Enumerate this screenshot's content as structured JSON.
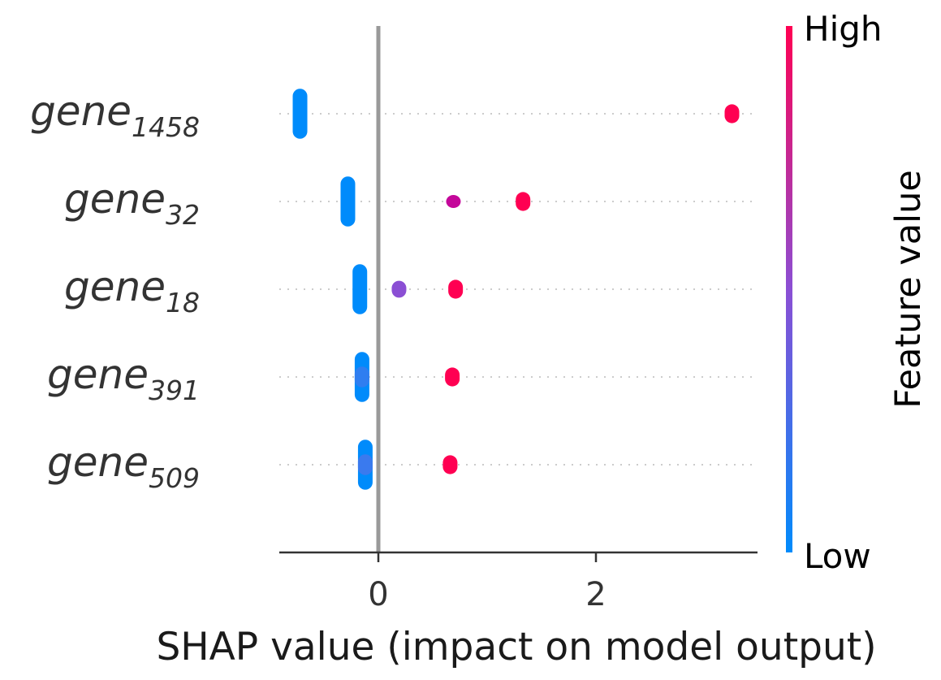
{
  "chart_data": {
    "type": "scatter",
    "subtype": "shap-beeswarm",
    "xlabel": "SHAP value (impact on model output)",
    "x_ticks": [
      0,
      2
    ],
    "xlim": [
      -0.9,
      3.45
    ],
    "zero_line": true,
    "colorbar": {
      "title": "Feature value",
      "high_label": "High",
      "low_label": "Low",
      "low_color": "#008bfb",
      "mid_color": "#8b4fd4",
      "high_color": "#ff0052"
    },
    "features": [
      {
        "base": "gene",
        "sub": "1458",
        "points": [
          {
            "x_min": -0.72,
            "x_max": -0.72,
            "spread": 0.38,
            "color": "#008bfb"
          },
          {
            "x_min": 3.25,
            "x_max": 3.25,
            "spread": 0.06,
            "color": "#ff0052"
          }
        ]
      },
      {
        "base": "gene",
        "sub": "32",
        "points": [
          {
            "x_min": -0.28,
            "x_max": -0.28,
            "spread": 0.38,
            "color": "#008bfb"
          },
          {
            "x_min": 0.69,
            "x_max": 0.69,
            "spread": 0.0,
            "color": "#c4079a"
          },
          {
            "x_min": 1.33,
            "x_max": 1.33,
            "spread": 0.06,
            "color": "#ff0052"
          }
        ]
      },
      {
        "base": "gene",
        "sub": "18",
        "points": [
          {
            "x_min": -0.17,
            "x_max": -0.17,
            "spread": 0.38,
            "color": "#008bfb"
          },
          {
            "x_min": 0.19,
            "x_max": 0.19,
            "spread": 0.04,
            "color": "#8b4fd4"
          },
          {
            "x_min": 0.71,
            "x_max": 0.71,
            "spread": 0.06,
            "color": "#ff0052"
          }
        ]
      },
      {
        "base": "gene",
        "sub": "391",
        "points": [
          {
            "x_min": -0.15,
            "x_max": -0.15,
            "spread": 0.38,
            "color": "#008bfb"
          },
          {
            "x_min": -0.15,
            "x_max": -0.15,
            "spread": 0.08,
            "color": "#2f7ef0"
          },
          {
            "x_min": 0.68,
            "x_max": 0.68,
            "spread": 0.06,
            "color": "#ff0052"
          }
        ]
      },
      {
        "base": "gene",
        "sub": "509",
        "points": [
          {
            "x_min": -0.12,
            "x_max": -0.12,
            "spread": 0.38,
            "color": "#008bfb"
          },
          {
            "x_min": -0.12,
            "x_max": -0.12,
            "spread": 0.08,
            "color": "#3a7aee"
          },
          {
            "x_min": 0.66,
            "x_max": 0.66,
            "spread": 0.06,
            "color": "#ff0052"
          }
        ]
      }
    ]
  }
}
